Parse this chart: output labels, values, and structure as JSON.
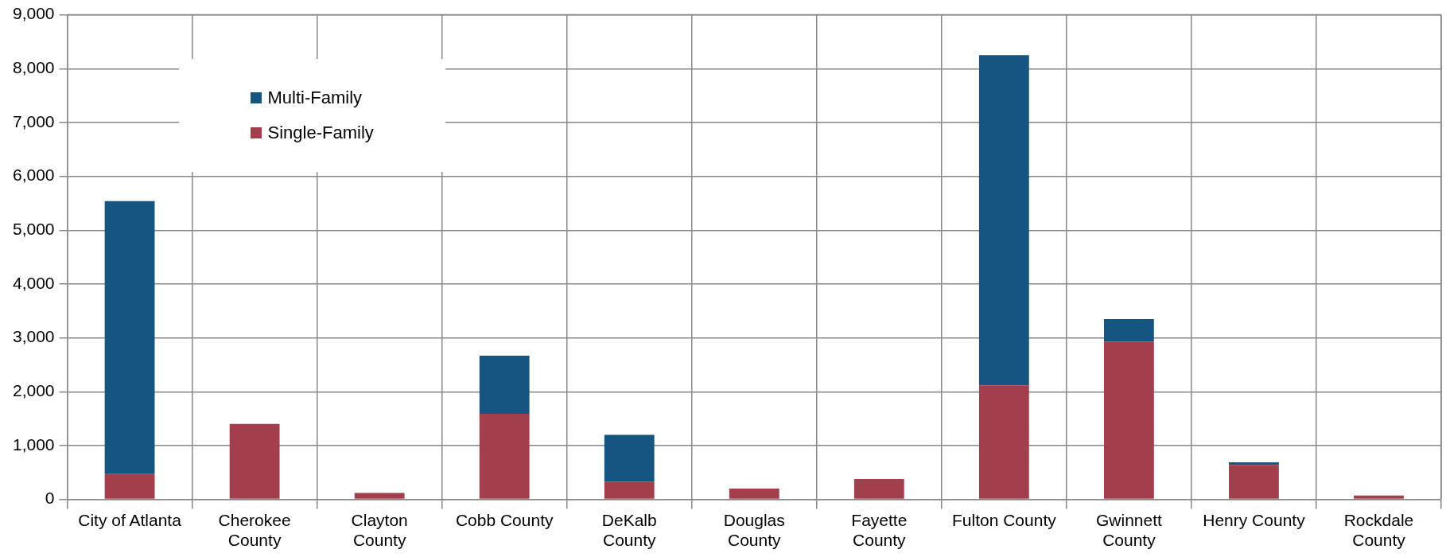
{
  "chart_data": {
    "type": "bar",
    "stacked": true,
    "categories": [
      "City of Atlanta",
      "Cherokee County",
      "Clayton County",
      "Cobb County",
      "DeKalb County",
      "Douglas County",
      "Fayette County",
      "Fulton County",
      "Gwinnett County",
      "Henry County",
      "Rockdale County"
    ],
    "series": [
      {
        "name": "Single-Family",
        "color": "#a33e4c",
        "values": [
          470,
          1400,
          120,
          1590,
          330,
          200,
          380,
          2120,
          2930,
          640,
          70
        ]
      },
      {
        "name": "Multi-Family",
        "color": "#16557f",
        "values": [
          5070,
          0,
          0,
          1080,
          870,
          0,
          0,
          6130,
          420,
          50,
          0
        ]
      }
    ],
    "ylim": [
      0,
      9000
    ],
    "yticks": [
      0,
      {
        "value": 1000,
        "label": "1,000"
      },
      {
        "value": 2000,
        "label": "2,000"
      },
      {
        "value": 3000,
        "label": "3,000"
      },
      {
        "value": 4000,
        "label": "4,000"
      },
      {
        "value": 5000,
        "label": "5,000"
      },
      {
        "value": 6000,
        "label": "6,000"
      },
      {
        "value": 7000,
        "label": "7,000"
      },
      {
        "value": 8000,
        "label": "8,000"
      },
      {
        "value": 9000,
        "label": "9,000"
      }
    ],
    "grid": true,
    "legend": "top left"
  }
}
